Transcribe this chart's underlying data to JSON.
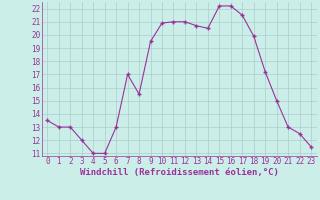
{
  "hours": [
    0,
    1,
    2,
    3,
    4,
    5,
    6,
    7,
    8,
    9,
    10,
    11,
    12,
    13,
    14,
    15,
    16,
    17,
    18,
    19,
    20,
    21,
    22,
    23
  ],
  "values": [
    13.5,
    13.0,
    13.0,
    12.0,
    11.0,
    11.0,
    13.0,
    17.0,
    15.5,
    19.5,
    20.9,
    21.0,
    21.0,
    20.7,
    20.5,
    22.2,
    22.2,
    21.5,
    19.9,
    17.2,
    15.0,
    13.0,
    12.5,
    11.5
  ],
  "line_color": "#993399",
  "marker": "+",
  "marker_size": 3,
  "bg_color": "#cceee8",
  "grid_color": "#aacccc",
  "xlabel": "Windchill (Refroidissement éolien,°C)",
  "ylim": [
    11,
    22.5
  ],
  "xlim": [
    -0.5,
    23.5
  ],
  "yticks": [
    11,
    12,
    13,
    14,
    15,
    16,
    17,
    18,
    19,
    20,
    21,
    22
  ],
  "xticks": [
    0,
    1,
    2,
    3,
    4,
    5,
    6,
    7,
    8,
    9,
    10,
    11,
    12,
    13,
    14,
    15,
    16,
    17,
    18,
    19,
    20,
    21,
    22,
    23
  ],
  "tick_fontsize": 5.5,
  "label_fontsize": 6.5
}
